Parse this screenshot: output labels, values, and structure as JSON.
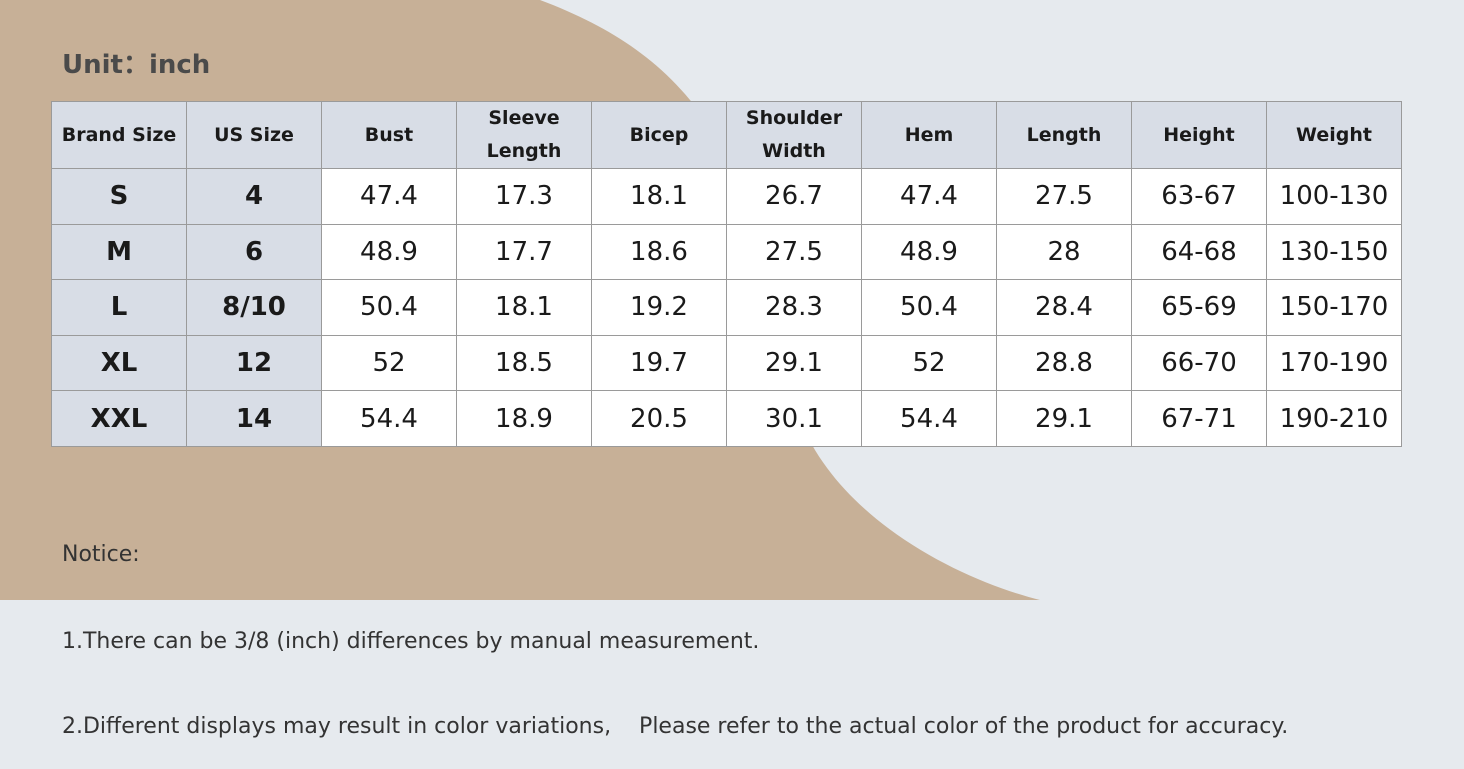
{
  "title": "Unit：inch",
  "table": {
    "header": [
      "Brand Size",
      "US Size",
      "Bust",
      "Sleeve Length",
      "Bicep",
      "Shoulder Width",
      "Hem",
      "Length",
      "Height",
      "Weight"
    ],
    "rows": [
      [
        "S",
        "4",
        "47.4",
        "17.3",
        "18.1",
        "26.7",
        "47.4",
        "27.5",
        "63-67",
        "100-130"
      ],
      [
        "M",
        "6",
        "48.9",
        "17.7",
        "18.6",
        "27.5",
        "48.9",
        "28",
        "64-68",
        "130-150"
      ],
      [
        "L",
        "8/10",
        "50.4",
        "18.1",
        "19.2",
        "28.3",
        "50.4",
        "28.4",
        "65-69",
        "150-170"
      ],
      [
        "XL",
        "12",
        "52",
        "18.5",
        "19.7",
        "29.1",
        "52",
        "28.8",
        "66-70",
        "170-190"
      ],
      [
        "XXL",
        "14",
        "54.4",
        "18.9",
        "20.5",
        "30.1",
        "54.4",
        "29.1",
        "67-71",
        "190-210"
      ]
    ]
  },
  "notice": {
    "heading": "Notice:",
    "lines": [
      "1.There can be 3/8 (inch) differences by manual measurement.",
      "2.Different displays may result in color variations,    Please refer to the actual color of the product for accuracy."
    ]
  }
}
